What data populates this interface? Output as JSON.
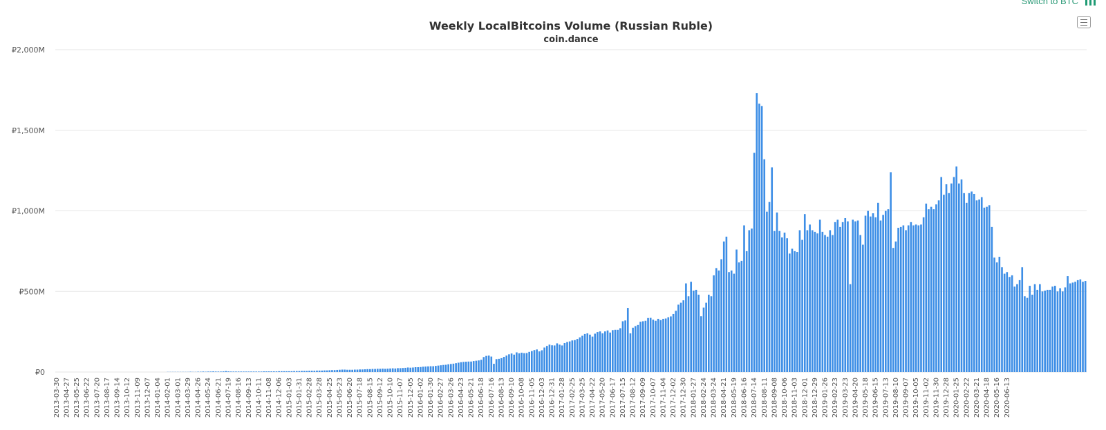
{
  "toolbar": {
    "switch_label": "Switch to BTC",
    "switch_icon": "bar-chart-icon",
    "menu_icon": "hamburger-menu-icon"
  },
  "colors": {
    "bar": "#3d8ee6",
    "accent": "#2b9a77"
  },
  "chart_data": {
    "type": "bar",
    "title": "Weekly LocalBitcoins Volume (Russian Ruble)",
    "subtitle": "coin.dance",
    "xlabel": "",
    "ylabel": "",
    "ylim": [
      0,
      2000
    ],
    "y_unit": "M RUB",
    "y_tick_labels": [
      "₽0",
      "₽500M",
      "₽1,000M",
      "₽1,500M",
      "₽2,000M"
    ],
    "y_ticks": [
      0,
      500,
      1000,
      1500,
      2000
    ],
    "grid": true,
    "x_start": "2013-03-30",
    "x_tick_labels": [
      "2013-03-30",
      "2013-04-27",
      "2013-05-25",
      "2013-06-22",
      "2013-07-20",
      "2013-08-17",
      "2013-09-14",
      "2013-10-12",
      "2013-11-09",
      "2013-12-07",
      "2014-01-04",
      "2014-02-01",
      "2014-03-01",
      "2014-03-29",
      "2014-04-26",
      "2014-05-24",
      "2014-06-21",
      "2014-07-19",
      "2014-08-16",
      "2014-09-13",
      "2014-10-11",
      "2014-11-08",
      "2014-12-06",
      "2015-01-03",
      "2015-01-31",
      "2015-02-28",
      "2015-03-28",
      "2015-04-25",
      "2015-05-23",
      "2015-06-20",
      "2015-07-18",
      "2015-08-15",
      "2015-09-12",
      "2015-10-10",
      "2015-11-07",
      "2015-12-05",
      "2016-01-02",
      "2016-01-30",
      "2016-02-27",
      "2016-03-26",
      "2016-04-23",
      "2016-05-21",
      "2016-06-18",
      "2016-07-16",
      "2016-08-13",
      "2016-09-10",
      "2016-10-08",
      "2016-11-05",
      "2016-12-03",
      "2016-12-31",
      "2017-01-28",
      "2017-02-25",
      "2017-03-25",
      "2017-04-22",
      "2017-05-20",
      "2017-06-17",
      "2017-07-15",
      "2017-08-12",
      "2017-09-09",
      "2017-10-07",
      "2017-11-04",
      "2017-12-02",
      "2017-12-30",
      "2018-01-27",
      "2018-02-24",
      "2018-03-24",
      "2018-04-21",
      "2018-05-19",
      "2018-06-16",
      "2018-07-14",
      "2018-08-11",
      "2018-09-08",
      "2018-10-06",
      "2018-11-03",
      "2018-12-01",
      "2018-12-29",
      "2019-01-26",
      "2019-02-23",
      "2019-03-23",
      "2019-04-20",
      "2019-05-18",
      "2019-06-15",
      "2019-07-13",
      "2019-08-10",
      "2019-09-07",
      "2019-10-05",
      "2019-11-02",
      "2019-11-30",
      "2019-12-28",
      "2020-01-25",
      "2020-02-22",
      "2020-03-21",
      "2020-04-18",
      "2020-05-16",
      "2020-06-13"
    ],
    "values": [
      0,
      0,
      0,
      0,
      0,
      0,
      0,
      0,
      0,
      0,
      0,
      0,
      0,
      0,
      0,
      0,
      0,
      0,
      0,
      0,
      0,
      0,
      0,
      0,
      0,
      0,
      0,
      0,
      0,
      0,
      0,
      0,
      0,
      0,
      0,
      0,
      0,
      0,
      0,
      0,
      0,
      0,
      0,
      0,
      1,
      1,
      1,
      1,
      1,
      1,
      1,
      1,
      1,
      2,
      1,
      1,
      2,
      2,
      3,
      2,
      3,
      3,
      4,
      3,
      3,
      3,
      4,
      6,
      4,
      3,
      3,
      3,
      3,
      3,
      3,
      3,
      3,
      3,
      3,
      3,
      3,
      3,
      4,
      4,
      4,
      4,
      4,
      4,
      5,
      5,
      5,
      5,
      5,
      5,
      6,
      6,
      6,
      7,
      7,
      7,
      8,
      8,
      8,
      9,
      9,
      9,
      10,
      10,
      11,
      12,
      12,
      13,
      14,
      15,
      15,
      14,
      14,
      14,
      15,
      15,
      16,
      16,
      17,
      18,
      18,
      19,
      19,
      20,
      20,
      21,
      20,
      21,
      22,
      23,
      22,
      24,
      24,
      25,
      26,
      28,
      27,
      28,
      30,
      30,
      31,
      33,
      34,
      35,
      36,
      36,
      38,
      40,
      42,
      44,
      45,
      48,
      50,
      52,
      55,
      58,
      61,
      63,
      64,
      65,
      65,
      68,
      70,
      72,
      76,
      93,
      100,
      102,
      96,
      51,
      80,
      82,
      86,
      94,
      102,
      110,
      115,
      108,
      122,
      116,
      120,
      117,
      118,
      125,
      130,
      136,
      140,
      128,
      135,
      152,
      162,
      170,
      166,
      165,
      178,
      170,
      165,
      180,
      186,
      190,
      196,
      198,
      205,
      215,
      225,
      236,
      240,
      232,
      220,
      238,
      248,
      252,
      240,
      252,
      258,
      245,
      260,
      262,
      262,
      272,
      315,
      320,
      398,
      240,
      275,
      285,
      292,
      312,
      315,
      318,
      335,
      336,
      325,
      318,
      330,
      322,
      330,
      332,
      340,
      345,
      360,
      380,
      418,
      430,
      445,
      550,
      470,
      560,
      505,
      510,
      480,
      346,
      400,
      430,
      480,
      470,
      600,
      645,
      630,
      700,
      810,
      840,
      620,
      630,
      610,
      760,
      680,
      690,
      910,
      750,
      880,
      890,
      1360,
      1730,
      1665,
      1650,
      1320,
      995,
      1055,
      1270,
      875,
      990,
      875,
      835,
      865,
      830,
      735,
      765,
      750,
      745,
      880,
      820,
      980,
      880,
      915,
      880,
      870,
      860,
      945,
      870,
      850,
      840,
      880,
      850,
      930,
      945,
      900,
      930,
      955,
      935,
      545,
      945,
      935,
      940,
      850,
      790,
      970,
      1000,
      965,
      985,
      960,
      1050,
      940,
      975,
      1000,
      1010,
      1240,
      770,
      810,
      895,
      900,
      910,
      880,
      910,
      930,
      910,
      915,
      910,
      915,
      960,
      1045,
      1010,
      1025,
      1010,
      1040,
      1065,
      1210,
      1100,
      1165,
      1110,
      1170,
      1210,
      1275,
      1170,
      1195,
      1110,
      1050,
      1110,
      1120,
      1105,
      1065,
      1070,
      1085,
      1020,
      1025,
      1035,
      900,
      710,
      680,
      715,
      650,
      610,
      620,
      590,
      600,
      530,
      545,
      570,
      650,
      470,
      460,
      535,
      480,
      545,
      510,
      545,
      500,
      505,
      510,
      510,
      530,
      535,
      500,
      520,
      500,
      525,
      595,
      550,
      555,
      560,
      570,
      575,
      560,
      565
    ]
  }
}
